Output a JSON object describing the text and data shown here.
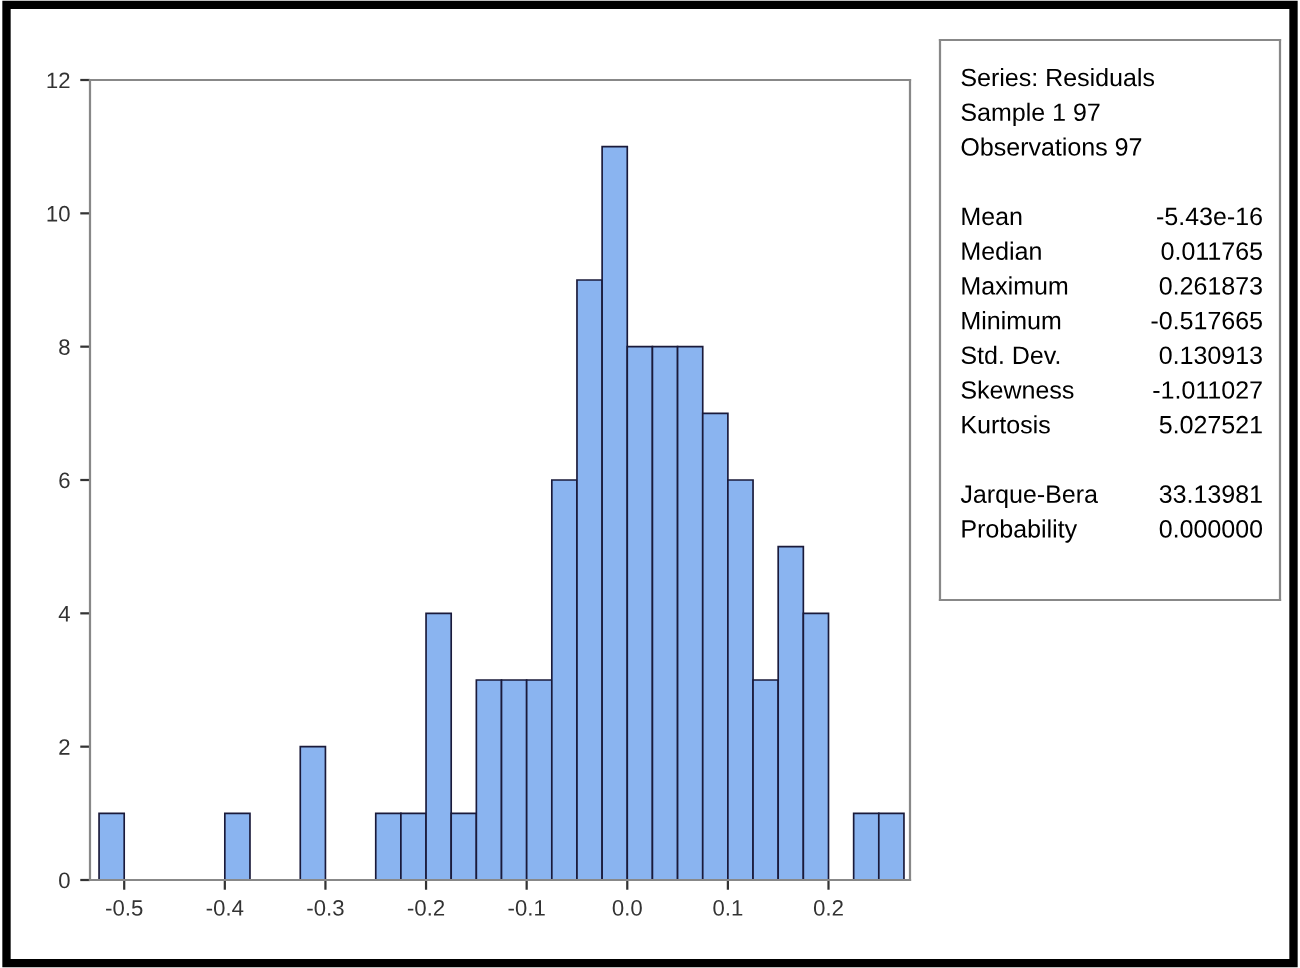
{
  "chart_data": {
    "type": "histogram",
    "bins": [
      -0.525,
      -0.5,
      -0.475,
      -0.45,
      -0.425,
      -0.4,
      -0.375,
      -0.35,
      -0.325,
      -0.3,
      -0.275,
      -0.25,
      -0.225,
      -0.2,
      -0.175,
      -0.15,
      -0.125,
      -0.1,
      -0.075,
      -0.05,
      -0.025,
      0,
      0.025,
      0.05,
      0.075,
      0.1,
      0.125,
      0.15,
      0.175,
      0.2,
      0.225,
      0.25,
      0.275
    ],
    "values": [
      1,
      0,
      0,
      0,
      0,
      1,
      0,
      0,
      2,
      0,
      0,
      1,
      1,
      4,
      1,
      3,
      3,
      3,
      6,
      9,
      11,
      8,
      8,
      8,
      7,
      6,
      3,
      5,
      4,
      0,
      1,
      1
    ],
    "color": "#8ab4f0",
    "xlim": [
      -0.534,
      0.281
    ],
    "xticks": [
      {
        "value": -0.5,
        "label": "-0.5"
      },
      {
        "value": -0.4,
        "label": "-0.4"
      },
      {
        "value": -0.3,
        "label": "-0.3"
      },
      {
        "value": -0.2,
        "label": "-0.2"
      },
      {
        "value": -0.1,
        "label": "-0.1"
      },
      {
        "value": 0,
        "label": "0.0"
      },
      {
        "value": 0.1,
        "label": "0.1"
      },
      {
        "value": 0.2,
        "label": "0.2"
      }
    ],
    "ylim": [
      0,
      12
    ],
    "yticks": [
      0,
      2,
      4,
      6,
      8,
      10,
      12
    ],
    "grid": false,
    "annotations": [
      "Series: Residuals",
      "Sample 1 97",
      "Observations 97",
      "Mean",
      "-5.43e-16",
      "Median",
      "0.011765",
      "Maximum",
      "0.261873",
      "Minimum",
      "-0.517665",
      "Std. Dev.",
      "0.130913",
      "Skewness",
      "-1.011027",
      "Kurtosis",
      "5.027521",
      "Jarque-Bera",
      "33.13981",
      "Probability",
      "0.000000"
    ]
  }
}
